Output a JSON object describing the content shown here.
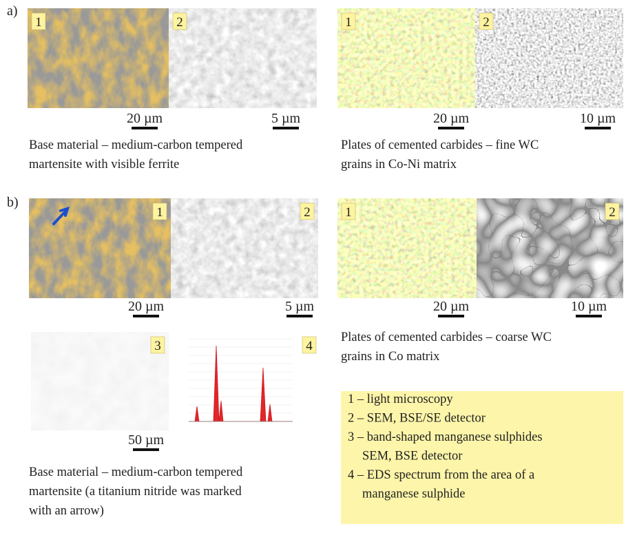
{
  "figure": {
    "parts": [
      {
        "label": "a)",
        "groups": [
          {
            "images": [
              {
                "number": "1",
                "scale": "20 µm"
              },
              {
                "number": "2",
                "scale": "5 µm"
              }
            ],
            "caption": [
              "Base material – medium-carbon tempered",
              "martensite with visible ferrite"
            ]
          },
          {
            "images": [
              {
                "number": "1",
                "scale": "20 µm"
              },
              {
                "number": "2",
                "scale": "10 µm"
              }
            ],
            "caption": [
              "Plates of cemented carbides – fine WC",
              "grains in Co-Ni matrix"
            ]
          }
        ]
      },
      {
        "label": "b)",
        "groups": [
          {
            "images": [
              {
                "number": "1",
                "scale": "20 µm"
              },
              {
                "number": "2",
                "scale": "5 µm"
              }
            ]
          },
          {
            "images": [
              {
                "number": "1",
                "scale": "20 µm"
              },
              {
                "number": "2",
                "scale": "10 µm"
              }
            ],
            "caption": [
              "Plates of cemented carbides – coarse WC",
              "grains in Co matrix"
            ]
          },
          {
            "images": [
              {
                "number": "3",
                "scale": "50 µm"
              },
              {
                "number": "4"
              }
            ],
            "caption": [
              "Base material – medium-carbon tempered",
              "martensite (a titanium nitride was marked",
              "with an arrow)"
            ]
          }
        ]
      }
    ],
    "legend": {
      "items": [
        [
          "1 – light microscopy"
        ],
        [
          "2 – SEM, BSE/SE detector"
        ],
        [
          "3 – band-shaped manganese sulphides",
          "SEM, BSE detector"
        ],
        [
          "4 – EDS spectrum from the area of a",
          "manganese sulphide"
        ]
      ]
    }
  }
}
